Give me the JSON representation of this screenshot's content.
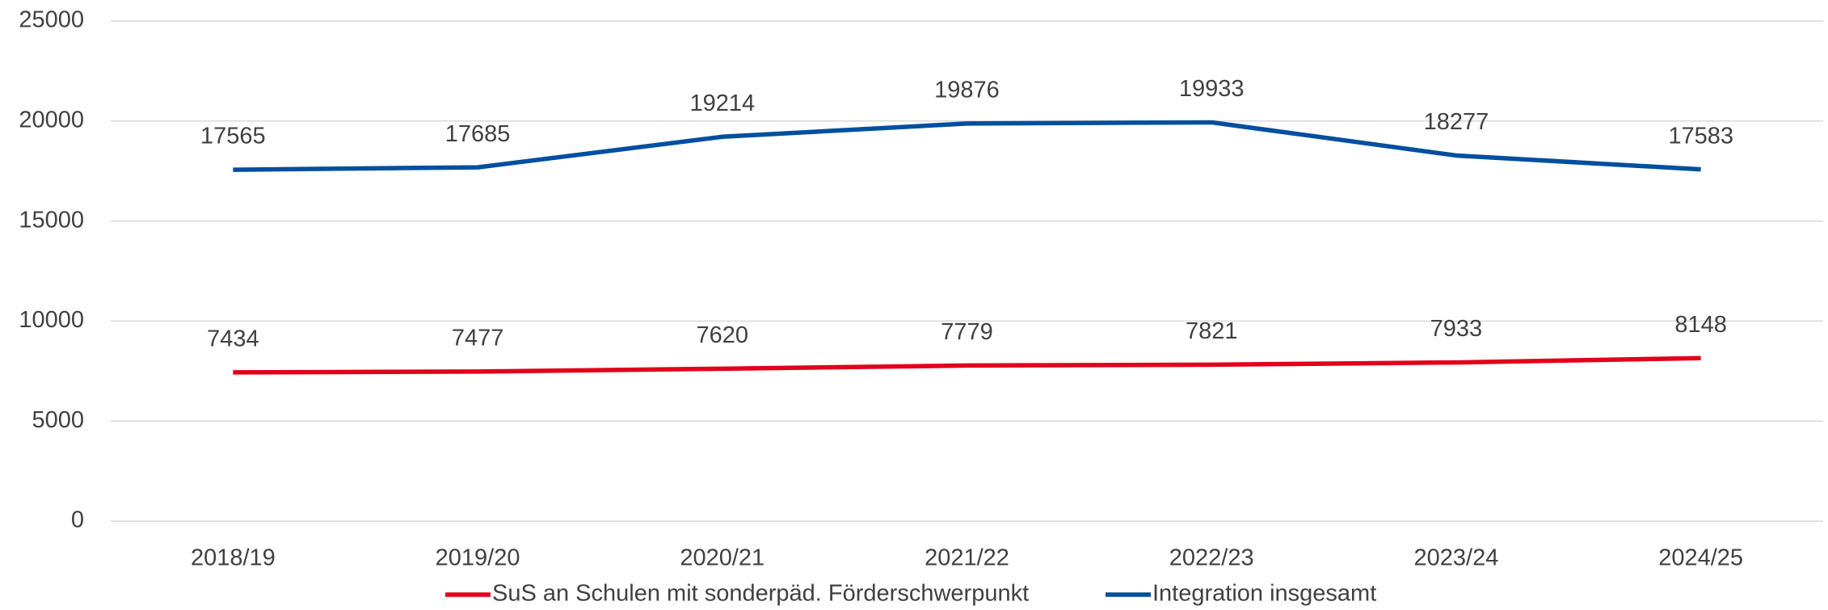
{
  "chart_data": {
    "type": "line",
    "categories": [
      "2018/19",
      "2019/20",
      "2020/21",
      "2021/22",
      "2022/23",
      "2023/24",
      "2024/25"
    ],
    "series": [
      {
        "name": "SuS an Schulen mit sonderpäd. Förderschwerpunkt",
        "color": "#e2001a",
        "values": [
          7434,
          7477,
          7620,
          7779,
          7821,
          7933,
          8148
        ]
      },
      {
        "name": "Integration insgesamt",
        "color": "#004f9f",
        "values": [
          17565,
          17685,
          19214,
          19876,
          19933,
          18277,
          17583
        ]
      }
    ],
    "ylim": [
      0,
      25000
    ],
    "yticks": [
      0,
      5000,
      10000,
      15000,
      20000,
      25000
    ],
    "grid": true,
    "legend": "bottom"
  }
}
